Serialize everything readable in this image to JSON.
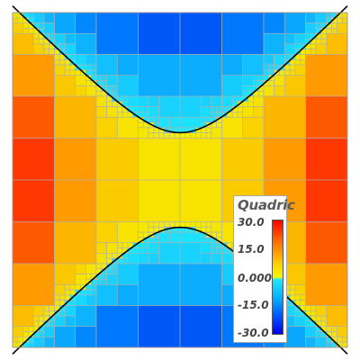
{
  "legend": {
    "title": "Quadric",
    "ticks": [
      "30.0",
      "15.0",
      "0.000",
      "-15.0",
      "-30.0"
    ]
  },
  "colors": {
    "neg_high": "#0000e8",
    "neg_mid": "#1ea8ff",
    "zero": "#f0f000",
    "pos_mid": "#ffaa00",
    "pos_high": "#ff2200",
    "grid": "#b0b0b0",
    "curve": "#000000"
  }
}
